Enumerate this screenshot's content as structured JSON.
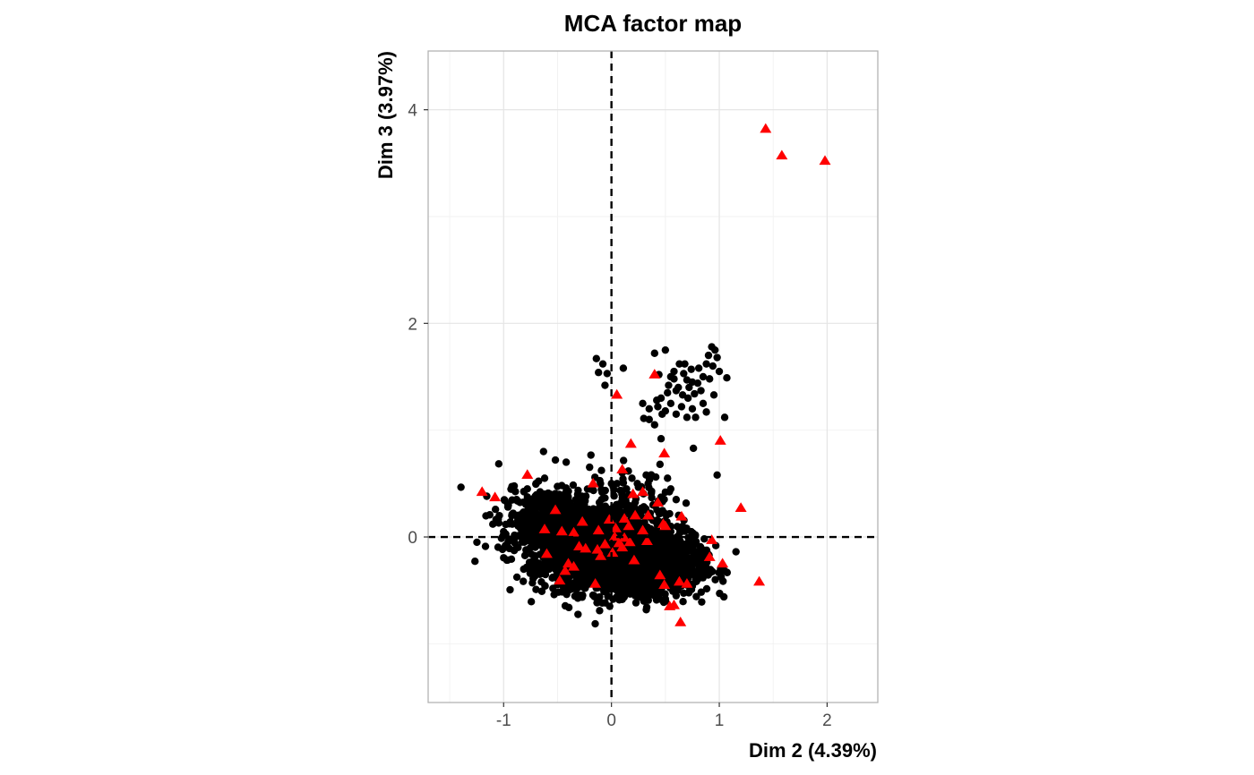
{
  "chart_data": {
    "type": "scatter",
    "title": "MCA factor map",
    "xlabel": "Dim 2 (4.39%)",
    "ylabel": "Dim 3 (3.97%)",
    "xlim": [
      -1.7,
      2.47
    ],
    "ylim": [
      -1.55,
      4.55
    ],
    "xticks": [
      -1,
      0,
      1,
      2
    ],
    "yticks": [
      0,
      2,
      4
    ],
    "grid": true,
    "reference_lines": {
      "x": 0,
      "y": 0,
      "style": "dashed"
    },
    "legend": "none",
    "colors": {
      "individuals": "#000000",
      "categories": "#ff0000",
      "grid_major": "#e5e5e5",
      "grid_minor": "#f2f2f2",
      "panel_border": "#b3b3b3"
    },
    "series": [
      {
        "marker": "circle",
        "color": "#000000",
        "clusters": [
          {
            "cx": 0.05,
            "cy": -0.25,
            "sx": 0.35,
            "sy": 0.14,
            "n": 1200
          },
          {
            "cx": 0.42,
            "cy": -0.28,
            "sx": 0.22,
            "sy": 0.13,
            "n": 600
          },
          {
            "cx": -0.55,
            "cy": 0.15,
            "sx": 0.25,
            "sy": 0.15,
            "n": 400
          },
          {
            "cx": -0.3,
            "cy": 0.05,
            "sx": 0.3,
            "sy": 0.2,
            "n": 300
          },
          {
            "cx": 0.2,
            "cy": 0.1,
            "sx": 0.2,
            "sy": 0.25,
            "n": 250
          }
        ],
        "points": [
          [
            -0.14,
            1.67
          ],
          [
            -0.08,
            1.62
          ],
          [
            -0.12,
            1.54
          ],
          [
            -0.04,
            1.53
          ],
          [
            -0.06,
            1.42
          ],
          [
            0.11,
            1.58
          ],
          [
            0.4,
            1.72
          ],
          [
            0.5,
            1.75
          ],
          [
            0.44,
            1.52
          ],
          [
            0.55,
            1.5
          ],
          [
            0.58,
            1.55
          ],
          [
            0.63,
            1.62
          ],
          [
            0.67,
            1.53
          ],
          [
            0.7,
            1.47
          ],
          [
            0.72,
            1.4
          ],
          [
            0.75,
            1.45
          ],
          [
            0.85,
            1.5
          ],
          [
            0.88,
            1.62
          ],
          [
            0.9,
            1.7
          ],
          [
            0.93,
            1.78
          ],
          [
            0.96,
            1.75
          ],
          [
            0.98,
            1.68
          ],
          [
            1.0,
            1.55
          ],
          [
            1.07,
            1.49
          ],
          [
            0.94,
            1.6
          ],
          [
            0.91,
            1.48
          ],
          [
            0.8,
            1.44
          ],
          [
            0.77,
            1.34
          ],
          [
            0.71,
            1.3
          ],
          [
            0.66,
            1.33
          ],
          [
            0.6,
            1.37
          ],
          [
            0.52,
            1.35
          ],
          [
            0.46,
            1.3
          ],
          [
            0.42,
            1.28
          ],
          [
            0.35,
            1.2
          ],
          [
            0.29,
            1.25
          ],
          [
            0.3,
            1.11
          ],
          [
            0.4,
            1.05
          ],
          [
            0.43,
            1.22
          ],
          [
            0.5,
            1.18
          ],
          [
            0.55,
            1.25
          ],
          [
            0.6,
            1.15
          ],
          [
            0.65,
            1.22
          ],
          [
            0.7,
            1.12
          ],
          [
            0.75,
            1.2
          ],
          [
            0.78,
            1.12
          ],
          [
            0.85,
            1.25
          ],
          [
            0.95,
            1.33
          ],
          [
            1.05,
            1.12
          ],
          [
            0.58,
            1.48
          ],
          [
            0.62,
            1.4
          ],
          [
            0.83,
            1.37
          ],
          [
            0.88,
            1.17
          ],
          [
            0.35,
            1.1
          ],
          [
            0.47,
            1.15
          ],
          [
            0.53,
            1.42
          ],
          [
            0.68,
            1.62
          ],
          [
            0.74,
            1.57
          ],
          [
            0.81,
            1.58
          ],
          [
            0.46,
            0.92
          ],
          [
            0.76,
            0.83
          ],
          [
            0.98,
            0.58
          ],
          [
            0.45,
            0.68
          ],
          [
            0.52,
            0.55
          ],
          [
            0.37,
            0.58
          ],
          [
            0.55,
            0.45
          ],
          [
            0.6,
            0.35
          ],
          [
            0.5,
            0.42
          ],
          [
            0.34,
            0.5
          ],
          [
            -0.63,
            0.8
          ],
          [
            -0.52,
            0.72
          ],
          [
            -0.42,
            0.7
          ],
          [
            -0.62,
            0.55
          ],
          [
            -0.7,
            0.5
          ],
          [
            -0.78,
            0.45
          ],
          [
            -0.88,
            0.35
          ],
          [
            -0.96,
            0.28
          ],
          [
            -1.04,
            0.2
          ],
          [
            -1.1,
            0.12
          ],
          [
            -1.0,
            0.05
          ],
          [
            -0.95,
            -0.02
          ],
          [
            -0.92,
            0.12
          ],
          [
            -0.85,
            0.2
          ],
          [
            -0.62,
            -0.15
          ],
          [
            -0.6,
            -0.25
          ],
          [
            -0.45,
            -0.3
          ],
          [
            -0.38,
            -0.35
          ],
          [
            0.3,
            -0.6
          ],
          [
            0.4,
            -0.55
          ],
          [
            0.5,
            -0.58
          ],
          [
            0.6,
            -0.55
          ],
          [
            0.7,
            -0.45
          ],
          [
            0.75,
            -0.35
          ],
          [
            0.78,
            -0.4
          ],
          [
            0.72,
            -0.2
          ],
          [
            0.65,
            -0.1
          ],
          [
            0.72,
            -0.05
          ],
          [
            0.55,
            0.05
          ],
          [
            0.66,
            0.1
          ],
          [
            0.74,
            0.05
          ],
          [
            0.15,
            -0.52
          ],
          [
            0.05,
            -0.5
          ],
          [
            -0.15,
            -0.45
          ],
          [
            -0.25,
            -0.48
          ],
          [
            0.1,
            0.6
          ],
          [
            0.0,
            0.5
          ],
          [
            0.19,
            0.55
          ],
          [
            0.24,
            0.5
          ],
          [
            0.14,
            0.45
          ]
        ]
      },
      {
        "marker": "triangle",
        "color": "#ff0000",
        "points": [
          [
            1.43,
            3.82
          ],
          [
            1.58,
            3.57
          ],
          [
            1.98,
            3.52
          ],
          [
            0.4,
            1.52
          ],
          [
            0.05,
            1.33
          ],
          [
            1.01,
            0.9
          ],
          [
            0.18,
            0.87
          ],
          [
            0.49,
            0.78
          ],
          [
            0.1,
            0.63
          ],
          [
            -0.78,
            0.58
          ],
          [
            -1.2,
            0.42
          ],
          [
            -1.08,
            0.37
          ],
          [
            -0.17,
            0.5
          ],
          [
            0.2,
            0.4
          ],
          [
            0.29,
            0.42
          ],
          [
            0.43,
            0.32
          ],
          [
            -0.52,
            0.25
          ],
          [
            1.2,
            0.27
          ],
          [
            0.65,
            0.19
          ],
          [
            -0.27,
            0.14
          ],
          [
            -0.02,
            0.16
          ],
          [
            0.12,
            0.17
          ],
          [
            0.22,
            0.2
          ],
          [
            0.34,
            0.2
          ],
          [
            0.48,
            0.12
          ],
          [
            -0.62,
            0.07
          ],
          [
            -0.46,
            0.05
          ],
          [
            -0.35,
            0.04
          ],
          [
            -0.12,
            0.06
          ],
          [
            0.04,
            0.08
          ],
          [
            0.16,
            0.1
          ],
          [
            0.29,
            0.06
          ],
          [
            0.5,
            0.1
          ],
          [
            0.93,
            -0.03
          ],
          [
            -0.3,
            -0.09
          ],
          [
            -0.24,
            -0.11
          ],
          [
            -0.06,
            -0.07
          ],
          [
            0.07,
            -0.06
          ],
          [
            0.17,
            -0.05
          ],
          [
            0.33,
            -0.04
          ],
          [
            -0.6,
            -0.16
          ],
          [
            -0.13,
            -0.12
          ],
          [
            0.01,
            -0.15
          ],
          [
            0.1,
            -0.1
          ],
          [
            -0.4,
            -0.25
          ],
          [
            -0.35,
            -0.28
          ],
          [
            -0.43,
            -0.32
          ],
          [
            -0.1,
            -0.18
          ],
          [
            0.21,
            -0.22
          ],
          [
            0.91,
            -0.19
          ],
          [
            1.03,
            -0.25
          ],
          [
            -0.48,
            -0.41
          ],
          [
            -0.15,
            -0.44
          ],
          [
            0.45,
            -0.36
          ],
          [
            0.63,
            -0.42
          ],
          [
            0.7,
            -0.44
          ],
          [
            0.49,
            -0.45
          ],
          [
            1.37,
            -0.42
          ],
          [
            0.54,
            -0.65
          ],
          [
            0.58,
            -0.64
          ],
          [
            0.64,
            -0.8
          ],
          [
            0.03,
            0.0
          ],
          [
            0.12,
            -0.01
          ]
        ]
      }
    ]
  }
}
